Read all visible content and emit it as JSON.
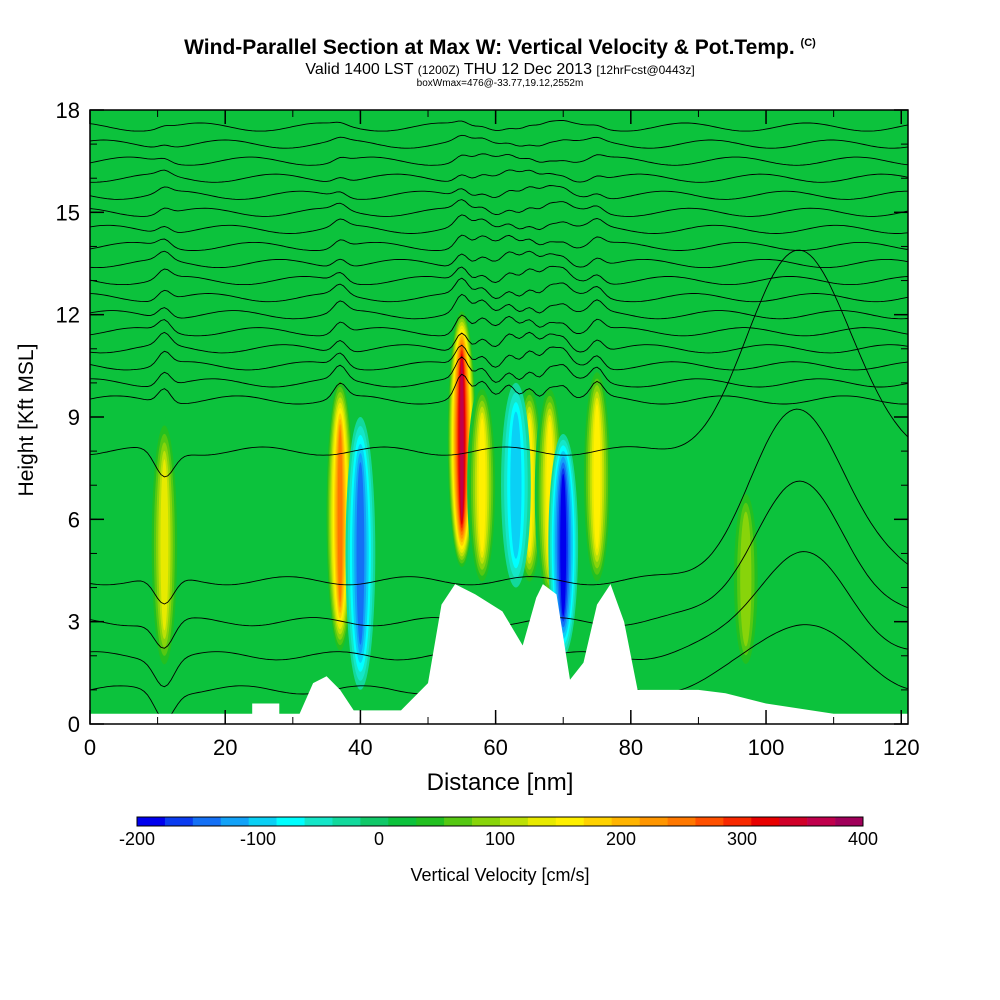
{
  "chart_data": {
    "type": "heatmap",
    "title": "Wind-Parallel Section at Max W: Vertical Velocity & Pot.Temp.",
    "title_mark": "(C)",
    "subtitle_main": "Valid 1400 LST",
    "subtitle_utc": "(1200Z)",
    "subtitle_date": "THU 12 Dec 2013",
    "subtitle_fcst": "[12hrFcst@0443z]",
    "annotation": "boxWmax=476@-33.77,19.12,2552m",
    "xlabel": "Distance [nm]",
    "ylabel": "Height [Kft MSL]",
    "xlim": [
      0,
      121
    ],
    "ylim": [
      0,
      18
    ],
    "xticks": [
      "0",
      "20",
      "40",
      "60",
      "80",
      "100",
      "120"
    ],
    "yticks": [
      "0",
      "3",
      "6",
      "9",
      "12",
      "15",
      "18"
    ],
    "colorbar": {
      "label": "Vertical Velocity [cm/s]",
      "min": -200,
      "max": 400,
      "tick_labels": [
        "-200",
        "-100",
        "0",
        "100",
        "200",
        "300",
        "400"
      ],
      "colors": [
        "#0000ee",
        "#0a3cf0",
        "#1470f5",
        "#12a2f8",
        "#0ad0f5",
        "#00ffff",
        "#14e6c8",
        "#12d99c",
        "#10c868",
        "#0cc23c",
        "#22c020",
        "#55c812",
        "#88d40a",
        "#bce006",
        "#e8ea00",
        "#fff000",
        "#ffd200",
        "#ffb400",
        "#ff9600",
        "#ff7800",
        "#ff5000",
        "#f82800",
        "#e80000",
        "#d00028",
        "#c0004c",
        "#a0005a"
      ]
    },
    "updrafts": [
      {
        "x": 11,
        "z_bottom": 1.5,
        "z_top": 9.0,
        "w": 130
      },
      {
        "x": 37,
        "z_bottom": 2.0,
        "z_top": 10.2,
        "w": 260
      },
      {
        "x": 55,
        "z_bottom": 4.5,
        "z_top": 12.2,
        "w": 380
      },
      {
        "x": 58,
        "z_bottom": 4.0,
        "z_top": 10.0,
        "w": 150
      },
      {
        "x": 65,
        "z_bottom": 4.0,
        "z_top": 10.0,
        "w": 160
      },
      {
        "x": 68,
        "z_bottom": 3.5,
        "z_top": 10.0,
        "w": 150
      },
      {
        "x": 75,
        "z_bottom": 4.0,
        "z_top": 10.5,
        "w": 170
      },
      {
        "x": 97,
        "z_bottom": 1.5,
        "z_top": 7.0,
        "w": 90
      }
    ],
    "downdrafts": [
      {
        "x": 40,
        "z_bottom": 1.0,
        "z_top": 9.0,
        "w": -150
      },
      {
        "x": 63,
        "z_bottom": 4.0,
        "z_top": 10.0,
        "w": -110
      },
      {
        "x": 70,
        "z_bottom": 2.0,
        "z_top": 8.5,
        "w": -190
      }
    ],
    "terrain": [
      [
        0,
        0.3
      ],
      [
        24,
        0.3
      ],
      [
        24,
        0.6
      ],
      [
        28,
        0.6
      ],
      [
        28,
        0.3
      ],
      [
        31,
        0.3
      ],
      [
        33,
        1.2
      ],
      [
        35,
        1.4
      ],
      [
        37,
        1.0
      ],
      [
        39,
        0.4
      ],
      [
        46,
        0.4
      ],
      [
        50,
        1.2
      ],
      [
        52,
        3.5
      ],
      [
        54,
        4.1
      ],
      [
        57,
        3.8
      ],
      [
        61,
        3.3
      ],
      [
        64,
        2.3
      ],
      [
        66,
        3.7
      ],
      [
        67,
        4.1
      ],
      [
        69,
        3.8
      ],
      [
        71,
        1.3
      ],
      [
        73,
        1.8
      ],
      [
        75,
        3.5
      ],
      [
        77,
        4.1
      ],
      [
        79,
        3.0
      ],
      [
        81,
        1.0
      ],
      [
        90,
        1.0
      ],
      [
        94,
        0.9
      ],
      [
        100,
        0.6
      ],
      [
        110,
        0.3
      ],
      [
        121,
        0.3
      ]
    ],
    "isentrope_levels_kft": [
      1.0,
      2.0,
      3.0,
      4.2,
      8.0,
      9.5,
      10.0,
      10.5,
      11.0,
      11.5,
      12.0,
      12.5,
      13.0,
      13.5,
      14.0,
      14.5,
      15.0,
      15.5,
      16.0,
      16.5,
      17.0,
      17.5
    ]
  },
  "colors": {
    "background": "#0cc23c",
    "contour": "#000000",
    "terrain": "#ffffff"
  }
}
